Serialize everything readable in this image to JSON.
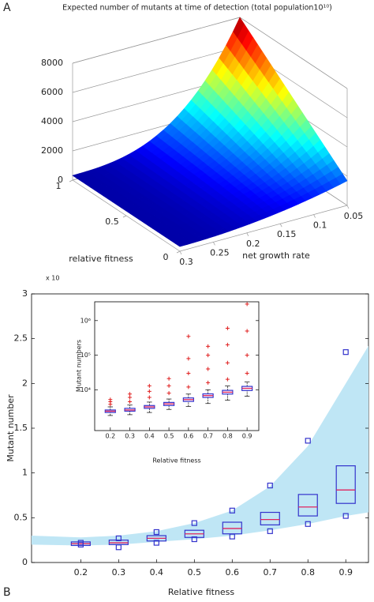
{
  "chart_data": [
    {
      "type": "surface",
      "panel_label": "A",
      "title": "Expected number of mutants at time of detection (total population10¹⁰)",
      "xlabel": "relative fitness",
      "ylabel": "net growth rate",
      "xlim": [
        0,
        1
      ],
      "xticks": [
        0,
        0.5,
        1
      ],
      "ylim": [
        0.05,
        0.3
      ],
      "yticks": [
        0.05,
        0.1,
        0.15,
        0.2,
        0.25,
        0.3
      ],
      "zlim": [
        0,
        8000
      ],
      "zticks": [
        0,
        2000,
        4000,
        6000,
        8000
      ]
    },
    {
      "type": "box",
      "panel_label": "B",
      "xlabel": "Relative fitness",
      "ylabel": "Mutant number",
      "y_multiplier": "x 10",
      "x": [
        0.2,
        0.3,
        0.4,
        0.5,
        0.6,
        0.7,
        0.8,
        0.9
      ],
      "xlim": [
        0.07,
        0.96
      ],
      "xticks": [
        0.2,
        0.3,
        0.4,
        0.5,
        0.6,
        0.7,
        0.8,
        0.9
      ],
      "ylim": [
        0,
        3
      ],
      "yticks": [
        0,
        0.5,
        1,
        1.5,
        2,
        2.5,
        3
      ],
      "q1": [
        0.19,
        0.2,
        0.24,
        0.28,
        0.32,
        0.42,
        0.52,
        0.66
      ],
      "median": [
        0.21,
        0.22,
        0.27,
        0.32,
        0.38,
        0.48,
        0.62,
        0.81
      ],
      "q3": [
        0.23,
        0.25,
        0.3,
        0.36,
        0.45,
        0.56,
        0.76,
        1.08
      ],
      "low": [
        0.2,
        0.17,
        0.22,
        0.26,
        0.29,
        0.35,
        0.43,
        0.52
      ],
      "high": [
        0.22,
        0.27,
        0.34,
        0.44,
        0.58,
        0.86,
        1.36,
        2.35
      ],
      "box_color": "#3333cc",
      "median_color": "#e0245e",
      "band": {
        "x": [
          0.07,
          0.2,
          0.3,
          0.4,
          0.5,
          0.6,
          0.7,
          0.8,
          0.9,
          0.96
        ],
        "lower": [
          0.2,
          0.19,
          0.2,
          0.23,
          0.26,
          0.3,
          0.36,
          0.43,
          0.52,
          0.56
        ],
        "upper": [
          0.3,
          0.28,
          0.3,
          0.35,
          0.44,
          0.58,
          0.85,
          1.3,
          2.0,
          2.42
        ],
        "color": "#bfe6f5"
      }
    },
    {
      "type": "box",
      "inset": true,
      "log_y": true,
      "xlabel": "Relative fitness",
      "ylabel": "Mutant numbers",
      "x": [
        0.2,
        0.3,
        0.4,
        0.5,
        0.6,
        0.7,
        0.8,
        0.9
      ],
      "xlim": [
        0.12,
        0.96
      ],
      "xticks": [
        0.2,
        0.3,
        0.4,
        0.5,
        0.6,
        0.7,
        0.8,
        0.9
      ],
      "ylim": [
        660,
        3500000
      ],
      "yticks": [
        {
          "value": 10000,
          "label": "10⁴"
        },
        {
          "value": 100000,
          "label": "10⁵"
        },
        {
          "value": 1000000,
          "label": "10⁶"
        }
      ],
      "min": [
        1800,
        1900,
        2200,
        2700,
        3300,
        4000,
        5000,
        6500
      ],
      "q1": [
        2200,
        2400,
        2900,
        3500,
        4600,
        6000,
        7500,
        9500
      ],
      "median": [
        2400,
        2600,
        3200,
        3900,
        5200,
        6800,
        8500,
        11000
      ],
      "q3": [
        2600,
        2900,
        3500,
        4300,
        5800,
        7600,
        9600,
        12500
      ],
      "max": [
        3200,
        3600,
        4400,
        5400,
        7500,
        10000,
        13000,
        17000
      ],
      "outliers": [
        [
          3800,
          4500,
          5200
        ],
        [
          4500,
          6000,
          7500
        ],
        [
          6000,
          9000,
          13000
        ],
        [
          8000,
          13000,
          21000
        ],
        [
          12000,
          30000,
          80000,
          350000
        ],
        [
          16000,
          40000,
          100000,
          180000
        ],
        [
          20000,
          60000,
          200000,
          600000
        ],
        [
          30000,
          100000,
          500000,
          3000000
        ]
      ],
      "box_color": "#3333cc",
      "median_color": "#e0245e",
      "outlier_color": "#e02020"
    }
  ]
}
